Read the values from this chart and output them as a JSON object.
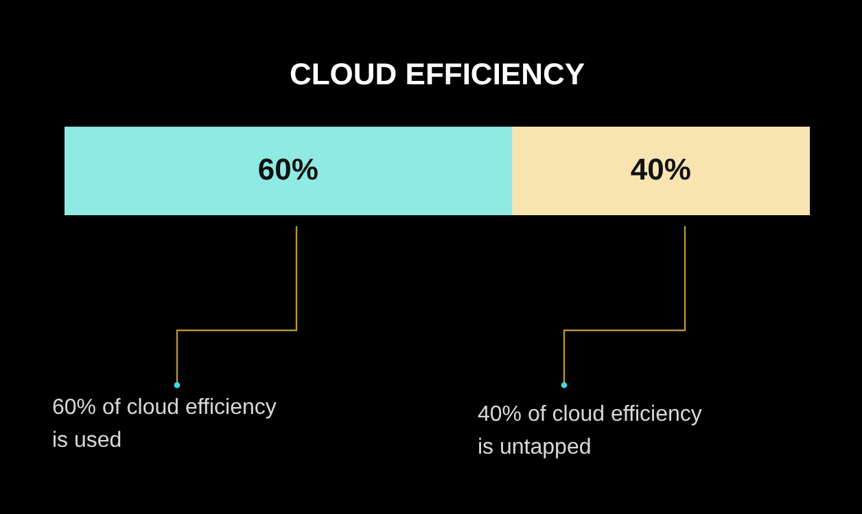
{
  "chart_data": {
    "type": "bar",
    "orientation": "horizontal",
    "stacked": true,
    "title": "CLOUD EFFICIENCY",
    "categories": [
      null
    ],
    "series": [
      {
        "color": "#8eeae2",
        "values": [
          60
        ],
        "value_labels": [
          "60%"
        ]
      },
      {
        "color": "#f8e4b0",
        "values": [
          40
        ],
        "value_labels": [
          "40%"
        ]
      }
    ],
    "xlim": [
      0,
      100
    ],
    "tick_labels": false,
    "legend": false,
    "annotations": [
      "60% of cloud efficiency is used",
      "40% of cloud efficiency is untapped"
    ]
  }
}
